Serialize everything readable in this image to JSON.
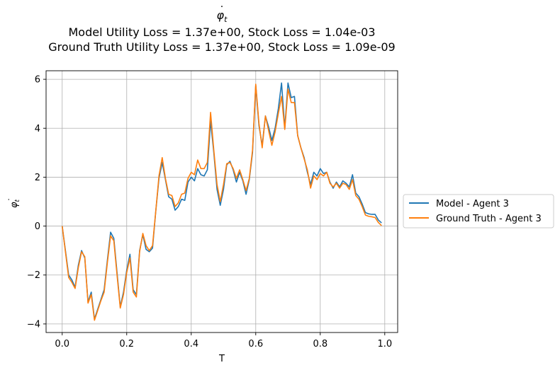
{
  "chart_data": {
    "type": "line",
    "title_lines": [
      "Model Utility Loss = 1.37e+00, Stock Loss = 1.04e-03",
      "Ground Truth Utility Loss = 1.37e+00, Stock Loss = 1.09e-09"
    ],
    "title_symbol": "φ",
    "title_symbol_sub": "t",
    "xlabel": "T",
    "ylabel_symbol": "φ",
    "ylabel_sub": "t",
    "xlim": [
      -0.05,
      1.04
    ],
    "ylim": [
      -4.35,
      6.35
    ],
    "xticks": [
      0.0,
      0.2,
      0.4,
      0.6,
      0.8,
      1.0
    ],
    "xtick_labels": [
      "0.0",
      "0.2",
      "0.4",
      "0.6",
      "0.8",
      "1.0"
    ],
    "yticks": [
      -4,
      -2,
      0,
      2,
      4,
      6
    ],
    "ytick_labels": [
      "−4",
      "−2",
      "0",
      "2",
      "4",
      "6"
    ],
    "grid": true,
    "legend_position": "right-outside",
    "x": [
      0.0,
      0.01,
      0.02,
      0.03,
      0.04,
      0.05,
      0.06,
      0.07,
      0.08,
      0.09,
      0.1,
      0.11,
      0.12,
      0.13,
      0.14,
      0.15,
      0.16,
      0.17,
      0.18,
      0.19,
      0.2,
      0.21,
      0.22,
      0.23,
      0.24,
      0.25,
      0.26,
      0.27,
      0.28,
      0.29,
      0.3,
      0.31,
      0.32,
      0.33,
      0.34,
      0.35,
      0.36,
      0.37,
      0.38,
      0.39,
      0.4,
      0.41,
      0.42,
      0.43,
      0.44,
      0.45,
      0.46,
      0.47,
      0.48,
      0.49,
      0.5,
      0.51,
      0.52,
      0.53,
      0.54,
      0.55,
      0.56,
      0.57,
      0.58,
      0.59,
      0.6,
      0.61,
      0.62,
      0.63,
      0.64,
      0.65,
      0.66,
      0.67,
      0.68,
      0.69,
      0.7,
      0.71,
      0.72,
      0.73,
      0.74,
      0.75,
      0.76,
      0.77,
      0.78,
      0.79,
      0.8,
      0.81,
      0.82,
      0.83,
      0.84,
      0.85,
      0.86,
      0.87,
      0.88,
      0.89,
      0.9,
      0.91,
      0.92,
      0.93,
      0.94,
      0.95,
      0.96,
      0.97,
      0.98,
      0.99
    ],
    "series": [
      {
        "name": "Model - Agent 3",
        "color": "#1f77b4",
        "values": [
          0.0,
          -1.0,
          -2.0,
          -2.2,
          -2.5,
          -1.6,
          -1.0,
          -1.3,
          -3.1,
          -2.7,
          -3.8,
          -3.4,
          -3.0,
          -2.6,
          -1.4,
          -0.25,
          -0.5,
          -1.9,
          -3.3,
          -2.7,
          -1.8,
          -1.15,
          -2.6,
          -2.8,
          -1.0,
          -0.35,
          -0.95,
          -1.05,
          -0.9,
          0.6,
          1.95,
          2.6,
          1.9,
          1.2,
          1.1,
          0.65,
          0.8,
          1.1,
          1.05,
          1.8,
          2.0,
          1.85,
          2.35,
          2.1,
          2.05,
          2.3,
          4.3,
          3.0,
          1.5,
          0.85,
          1.5,
          2.5,
          2.65,
          2.3,
          1.8,
          2.2,
          1.85,
          1.3,
          1.9,
          3.0,
          5.75,
          4.1,
          3.3,
          4.5,
          4.05,
          3.5,
          4.0,
          4.8,
          5.85,
          4.0,
          5.85,
          5.25,
          5.3,
          3.7,
          3.2,
          2.8,
          2.2,
          1.7,
          2.2,
          2.05,
          2.35,
          2.15,
          2.2,
          1.8,
          1.55,
          1.8,
          1.6,
          1.85,
          1.75,
          1.6,
          2.1,
          1.35,
          1.2,
          0.9,
          0.55,
          0.5,
          0.48,
          0.48,
          0.25,
          0.13
        ]
      },
      {
        "name": "Ground Truth - Agent 3",
        "color": "#ff7f0e",
        "values": [
          0.0,
          -1.05,
          -2.1,
          -2.3,
          -2.55,
          -1.7,
          -1.05,
          -1.25,
          -3.15,
          -2.8,
          -3.85,
          -3.45,
          -3.05,
          -2.7,
          -1.5,
          -0.4,
          -0.6,
          -2.0,
          -3.35,
          -2.8,
          -1.9,
          -1.3,
          -2.7,
          -2.9,
          -1.05,
          -0.3,
          -0.8,
          -1.0,
          -0.8,
          0.6,
          2.05,
          2.8,
          1.95,
          1.3,
          1.25,
          0.8,
          0.95,
          1.3,
          1.35,
          1.95,
          2.2,
          2.1,
          2.7,
          2.35,
          2.35,
          2.6,
          4.65,
          3.1,
          1.7,
          1.0,
          1.7,
          2.55,
          2.6,
          2.35,
          1.95,
          2.3,
          1.9,
          1.45,
          1.95,
          3.1,
          5.8,
          4.2,
          3.2,
          4.5,
          3.9,
          3.3,
          3.85,
          4.6,
          5.3,
          3.95,
          5.6,
          5.05,
          5.05,
          3.7,
          3.2,
          2.75,
          2.3,
          1.55,
          2.05,
          1.9,
          2.15,
          2.05,
          2.2,
          1.75,
          1.6,
          1.75,
          1.55,
          1.75,
          1.7,
          1.5,
          1.9,
          1.25,
          1.1,
          0.8,
          0.45,
          0.4,
          0.38,
          0.35,
          0.15,
          0.02
        ]
      }
    ]
  }
}
